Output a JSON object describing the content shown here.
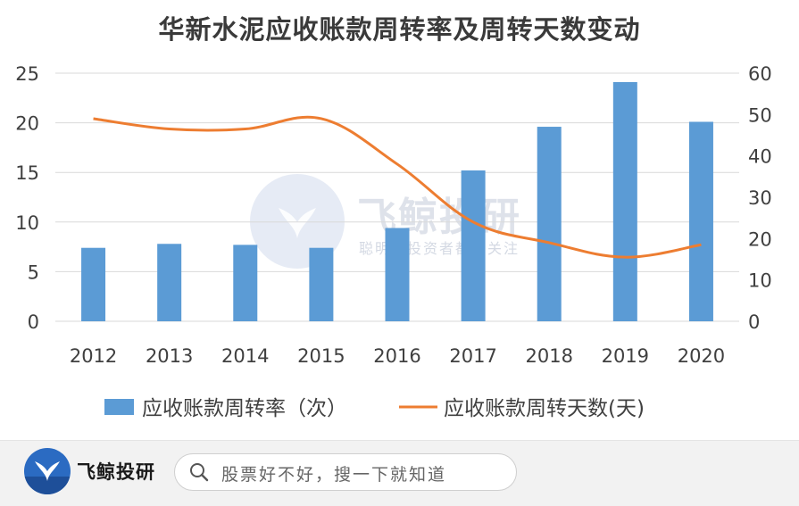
{
  "chart_data": {
    "type": "bar",
    "title": "华新水泥应收账款周转率及周转天数变动",
    "categories": [
      "2012",
      "2013",
      "2014",
      "2015",
      "2016",
      "2017",
      "2018",
      "2019",
      "2020"
    ],
    "series": [
      {
        "name": "应收账款周转率（次）",
        "type": "bar",
        "axis": "left",
        "color": "#5b9bd5",
        "values": [
          7.4,
          7.8,
          7.7,
          7.4,
          9.4,
          15.2,
          19.6,
          24.1,
          20.1
        ]
      },
      {
        "name": "应收账款周转天数(天)",
        "type": "line",
        "axis": "right",
        "color": "#ed7d31",
        "values": [
          49,
          46.5,
          46.5,
          49,
          38,
          24,
          19,
          15.5,
          18.5
        ]
      }
    ],
    "y_left": {
      "min": 0,
      "max": 25,
      "ticks": [
        "0",
        "5",
        "10",
        "15",
        "20",
        "25"
      ]
    },
    "y_right": {
      "min": 0,
      "max": 60,
      "ticks": [
        "0",
        "10",
        "20",
        "30",
        "40",
        "50",
        "60"
      ]
    },
    "grid": true,
    "legend_position": "bottom"
  },
  "watermark": {
    "brand": "飞鲸投研",
    "slogan": "聪明的投资者都在关注"
  },
  "footer": {
    "brand": "飞鲸投研",
    "search_placeholder": "股票好不好，搜一下就知道"
  },
  "icons": {
    "logo": "whale-tail-icon",
    "search": "search-icon"
  }
}
